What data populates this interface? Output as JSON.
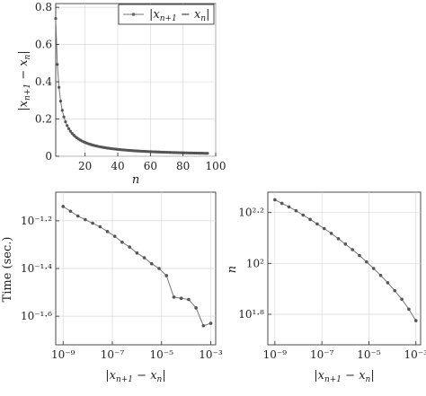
{
  "chart_data": [
    {
      "type": "line",
      "xlabel": "n",
      "ylabel": "|x_{n+1} − x_n|",
      "xlim": [
        2,
        100
      ],
      "ylim": [
        0,
        0.82
      ],
      "xticks": [
        20,
        40,
        60,
        80,
        100
      ],
      "xtick_labels": [
        "20",
        "40",
        "60",
        "80",
        "100"
      ],
      "yticks": [
        0,
        0.2,
        0.4,
        0.6,
        0.8
      ],
      "ytick_labels": [
        "0",
        "0.2",
        "0.4",
        "0.6",
        "0.8"
      ],
      "grid": true,
      "legend": "top-right",
      "series": [
        {
          "name": "|x_{n+1} − x_n|",
          "formula": "0.74*2/n",
          "x_start": 2,
          "x_end": 95
        }
      ]
    },
    {
      "type": "line",
      "xscale": "log",
      "yscale": "log",
      "xlabel": "|x_{n+1} − x_n|",
      "ylabel": "Time (sec.)",
      "xlim": [
        -9.3,
        -2.8
      ],
      "ylim": [
        -1.72,
        -1.08
      ],
      "xticks": [
        -9,
        -7,
        -5,
        -3
      ],
      "xtick_labels": [
        "10⁻⁹",
        "10⁻⁷",
        "10⁻⁵",
        "10⁻³"
      ],
      "yticks": [
        -1.2,
        -1.4,
        -1.6
      ],
      "ytick_labels": [
        "10⁻¹·²",
        "10⁻¹·⁴",
        "10⁻¹·⁶"
      ],
      "grid": true,
      "x_log10": [
        -9,
        -8.7,
        -8.4,
        -8.1,
        -7.8,
        -7.5,
        -7.2,
        -6.9,
        -6.6,
        -6.3,
        -6.0,
        -5.7,
        -5.4,
        -5.1,
        -4.8,
        -4.5,
        -4.2,
        -3.9,
        -3.6,
        -3.3,
        -3.0
      ],
      "y_log10": [
        -1.14,
        -1.16,
        -1.18,
        -1.195,
        -1.21,
        -1.225,
        -1.245,
        -1.265,
        -1.29,
        -1.31,
        -1.335,
        -1.355,
        -1.38,
        -1.4,
        -1.43,
        -1.52,
        -1.525,
        -1.53,
        -1.565,
        -1.64,
        -1.63
      ]
    },
    {
      "type": "line",
      "xscale": "log",
      "yscale": "log",
      "xlabel": "|x_{n+1} − x_n|",
      "ylabel": "n",
      "xlim": [
        -9.3,
        -2.8
      ],
      "ylim": [
        1.68,
        2.28
      ],
      "xticks": [
        -9,
        -7,
        -5,
        -3
      ],
      "xtick_labels": [
        "10⁻⁹",
        "10⁻⁷",
        "10⁻⁵",
        "10⁻³"
      ],
      "yticks": [
        1.8,
        2.0,
        2.2
      ],
      "ytick_labels": [
        "10¹·⁸",
        "10²",
        "10²·²"
      ],
      "grid": true,
      "x_log10": [
        -9,
        -8.7,
        -8.4,
        -8.1,
        -7.8,
        -7.5,
        -7.2,
        -6.9,
        -6.6,
        -6.3,
        -6.0,
        -5.7,
        -5.4,
        -5.1,
        -4.8,
        -4.5,
        -4.2,
        -3.9,
        -3.6,
        -3.3,
        -3.0
      ],
      "y_log10": [
        2.25,
        2.236,
        2.222,
        2.207,
        2.19,
        2.173,
        2.155,
        2.137,
        2.118,
        2.097,
        2.076,
        2.054,
        2.031,
        2.006,
        1.98,
        1.953,
        1.924,
        1.893,
        1.859,
        1.82,
        1.775
      ]
    }
  ]
}
